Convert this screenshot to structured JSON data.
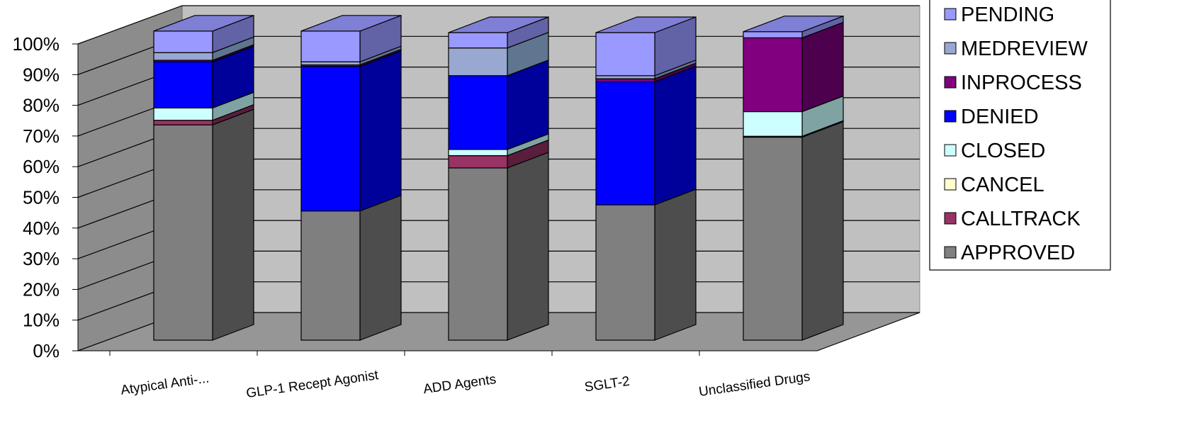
{
  "chart_data": {
    "type": "bar",
    "stacked": true,
    "percent": true,
    "three_d": true,
    "categories": [
      "Atypical Anti-...",
      "GLP-1 Recept Agonist",
      "ADD Agents",
      "SGLT-2",
      "Unclassified Drugs"
    ],
    "y_ticks": [
      "0%",
      "10%",
      "20%",
      "30%",
      "40%",
      "50%",
      "60%",
      "70%",
      "80%",
      "90%",
      "100%"
    ],
    "ylim": [
      0,
      100
    ],
    "grid": true,
    "legend_position": "right",
    "series": [
      {
        "name": "APPROVED",
        "values": [
          70,
          42,
          56,
          44,
          66
        ]
      },
      {
        "name": "CALLTRACK",
        "values": [
          1.5,
          0,
          4,
          0,
          0
        ]
      },
      {
        "name": "CANCEL",
        "values": [
          0,
          0,
          0,
          0,
          0.3
        ]
      },
      {
        "name": "CLOSED",
        "values": [
          4,
          0,
          2,
          0,
          8
        ]
      },
      {
        "name": "DENIED",
        "values": [
          15,
          47,
          24,
          40,
          0
        ]
      },
      {
        "name": "INPROCESS",
        "values": [
          0.5,
          0.5,
          0,
          1,
          24
        ]
      },
      {
        "name": "MEDREVIEW",
        "values": [
          2.5,
          1,
          9,
          1,
          0
        ]
      },
      {
        "name": "PENDING",
        "values": [
          7,
          10,
          5,
          14,
          2
        ]
      }
    ],
    "colors": {
      "APPROVED": {
        "front": "#7f7f7f",
        "side": "#4d4d4d",
        "top": "#9a9a9a",
        "legend": "#808080"
      },
      "CALLTRACK": {
        "front": "#993366",
        "side": "#5a1d3c",
        "top": "#b04a7c",
        "legend": "#993366"
      },
      "CANCEL": {
        "front": "#ffffcc",
        "side": "#a0a07a",
        "top": "#ffffe0",
        "legend": "#ffffcc"
      },
      "CLOSED": {
        "front": "#ccffff",
        "side": "#7fa3a3",
        "top": "#e0ffff",
        "legend": "#ccffff"
      },
      "DENIED": {
        "front": "#0000ff",
        "side": "#00009b",
        "top": "#4040ff",
        "legend": "#0000ff"
      },
      "INPROCESS": {
        "front": "#800080",
        "side": "#4d004d",
        "top": "#9a3a9a",
        "legend": "#800080"
      },
      "MEDREVIEW": {
        "front": "#99a8d0",
        "side": "#5f7590",
        "top": "#b8c4e0",
        "legend": "#99a8d0"
      },
      "PENDING": {
        "front": "#9999ff",
        "side": "#6262a6",
        "top": "#7f7fd6",
        "legend": "#9999ff"
      }
    },
    "wall_colors": {
      "back": "#c0c0c0",
      "left": "#8c8c8c",
      "floor": "#969696"
    }
  }
}
